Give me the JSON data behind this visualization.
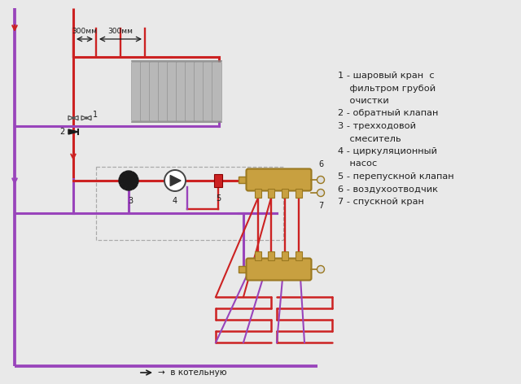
{
  "bg_color": "#e9e9e9",
  "red": "#cc2222",
  "purple": "#9944bb",
  "dark_purple": "#7722aa",
  "gray_rad": "#b8b8b8",
  "gray_rad_edge": "#888888",
  "brass": "#c8a040",
  "brass_edge": "#9a7820",
  "black": "#1a1a1a",
  "lw_main": 2.2,
  "lw_thin": 1.4,
  "legend_lines": [
    "1 - шаровый кран  с",
    "    фильтром грубой",
    "    очистки",
    "2 - обратный клапан",
    "3 - трехходовой",
    "    смеситель",
    "4 - циркуляционный",
    "    насос",
    "5 - перепускной клапан",
    "6 - воздухоотводчик",
    "7 - спускной кран"
  ],
  "label_300mm_1": "300мм",
  "label_300mm_2": "300мм",
  "label_kotelnuyu": "→  в котельную"
}
